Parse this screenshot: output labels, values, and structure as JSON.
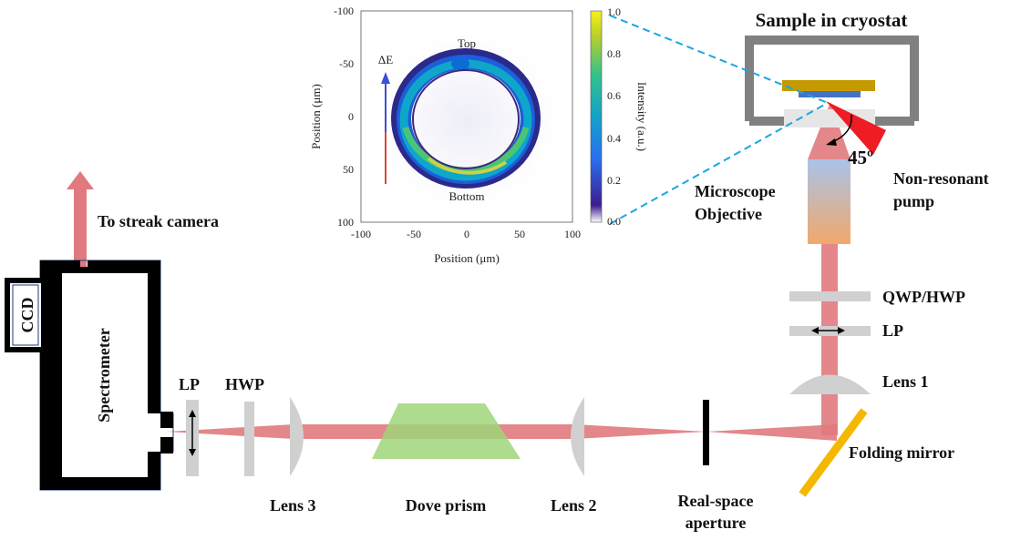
{
  "labels": {
    "to_streak_camera": "To streak camera",
    "ccd": "CCD",
    "spectrometer": "Spectrometer",
    "lp_left": "LP",
    "hwp": "HWP",
    "lens3": "Lens 3",
    "dove_prism": "Dove prism",
    "lens2": "Lens 2",
    "aperture_line1": "Real-space",
    "aperture_line2": "aperture",
    "folding_mirror": "Folding mirror",
    "lens1": "Lens 1",
    "lp_right": "LP",
    "qwp_hwp": "QWP/HWP",
    "objective_line1": "Microscope",
    "objective_line2": "Objective",
    "pump_line1": "Non-resonant",
    "pump_line2": "pump",
    "angle": "45º",
    "sample": "Sample in cryostat"
  },
  "inset": {
    "xlabel": "Position (μm)",
    "ylabel": "Position (μm)",
    "colorbar_label": "Intensity (a.u.)",
    "x_ticks": [
      "-100",
      "-50",
      "0",
      "50",
      "100"
    ],
    "y_ticks": [
      "-100",
      "-50",
      "0",
      "50",
      "100"
    ],
    "colorbar_ticks": [
      "1.0",
      "0.8",
      "0.6",
      "0.4",
      "0.2",
      "0.0"
    ],
    "top_label": "Top",
    "bottom_label": "Bottom",
    "energy_label": "ΔE"
  },
  "colors": {
    "beam": "#e07a7e",
    "dove_prism": "#9fd67a",
    "mirror": "#f5b800",
    "pump": "#ee1c25",
    "housing": "#000000",
    "cryostat": "#808080",
    "sample": "#c49a00",
    "substrate": "#4472c4",
    "optic_grey": "#d0d0d0",
    "dashed": "#1aa7e0"
  }
}
